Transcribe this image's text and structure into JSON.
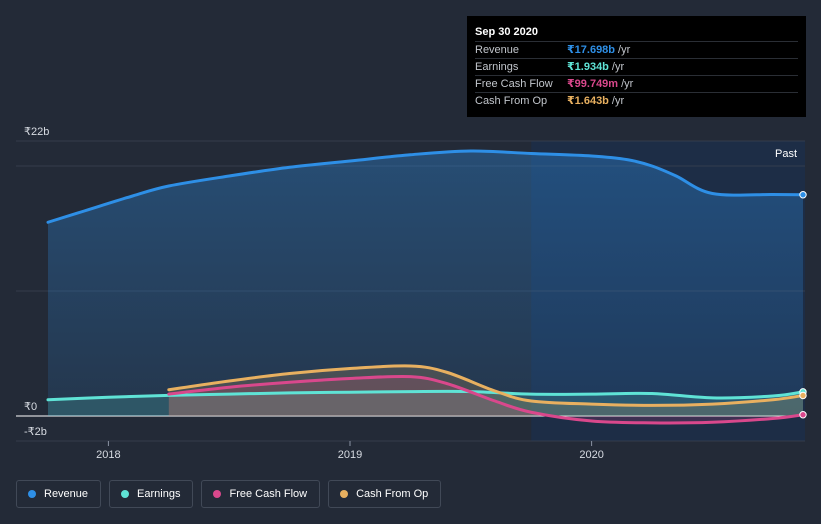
{
  "tooltip": {
    "date": "Sep 30 2020",
    "rows": [
      {
        "name": "Revenue",
        "value": "₹17.698b",
        "unit": "/yr",
        "color": "#2e8fe6"
      },
      {
        "name": "Earnings",
        "value": "₹1.934b",
        "unit": "/yr",
        "color": "#5fe3d6"
      },
      {
        "name": "Free Cash Flow",
        "value": "₹99.749m",
        "unit": "/yr",
        "color": "#d9488c"
      },
      {
        "name": "Cash From Op",
        "value": "₹1.643b",
        "unit": "/yr",
        "color": "#e8b060"
      }
    ]
  },
  "legend": [
    {
      "label": "Revenue",
      "color": "#2e8fe6"
    },
    {
      "label": "Earnings",
      "color": "#5fe3d6"
    },
    {
      "label": "Free Cash Flow",
      "color": "#d9488c"
    },
    {
      "label": "Cash From Op",
      "color": "#e8b060"
    }
  ],
  "chart_data": {
    "type": "area",
    "past_label": "Past",
    "y_tick_labels": [
      "₹22b",
      "₹0",
      "-₹2b"
    ],
    "y_ticks": [
      22,
      0,
      -2
    ],
    "ylim": [
      -2,
      22
    ],
    "xlim": [
      2017.75,
      2020.875
    ],
    "x_ticks": [
      2018,
      2019,
      2020
    ],
    "x_tick_labels": [
      "2018",
      "2019",
      "2020"
    ],
    "past_region_start": 2019.75,
    "grid": true,
    "legend_position": "bottom",
    "series": [
      {
        "name": "Revenue",
        "color": "#2e8fe6",
        "fill": true,
        "x": [
          2017.75,
          2017.9,
          2018.1,
          2018.25,
          2018.5,
          2018.75,
          2019.0,
          2019.25,
          2019.5,
          2019.75,
          2020.0,
          2020.15,
          2020.25,
          2020.35,
          2020.5,
          2020.75,
          2020.875
        ],
        "y": [
          15.5,
          16.4,
          17.6,
          18.4,
          19.2,
          19.9,
          20.4,
          20.9,
          21.2,
          21.0,
          20.8,
          20.5,
          20.0,
          19.2,
          17.8,
          17.72,
          17.7
        ]
      },
      {
        "name": "Earnings",
        "color": "#5fe3d6",
        "fill": true,
        "x": [
          2017.75,
          2018.0,
          2018.25,
          2018.5,
          2018.75,
          2019.0,
          2019.25,
          2019.5,
          2019.75,
          2020.0,
          2020.25,
          2020.5,
          2020.75,
          2020.875
        ],
        "y": [
          1.3,
          1.5,
          1.65,
          1.75,
          1.85,
          1.9,
          1.95,
          1.95,
          1.75,
          1.75,
          1.8,
          1.45,
          1.6,
          1.93
        ]
      },
      {
        "name": "Free Cash Flow",
        "color": "#d9488c",
        "fill": true,
        "x": [
          2018.25,
          2018.5,
          2018.75,
          2019.0,
          2019.25,
          2019.4,
          2019.6,
          2019.75,
          2020.0,
          2020.25,
          2020.5,
          2020.75,
          2020.875
        ],
        "y": [
          1.75,
          2.3,
          2.7,
          3.0,
          3.15,
          2.6,
          1.2,
          0.3,
          -0.4,
          -0.55,
          -0.5,
          -0.2,
          0.1
        ]
      },
      {
        "name": "Cash From Op",
        "color": "#e8b060",
        "fill": true,
        "x": [
          2018.25,
          2018.5,
          2018.75,
          2019.0,
          2019.25,
          2019.4,
          2019.6,
          2019.75,
          2020.0,
          2020.25,
          2020.5,
          2020.75,
          2020.875
        ],
        "y": [
          2.1,
          2.8,
          3.4,
          3.8,
          4.0,
          3.5,
          2.0,
          1.2,
          0.95,
          0.85,
          0.95,
          1.3,
          1.64
        ]
      }
    ]
  }
}
